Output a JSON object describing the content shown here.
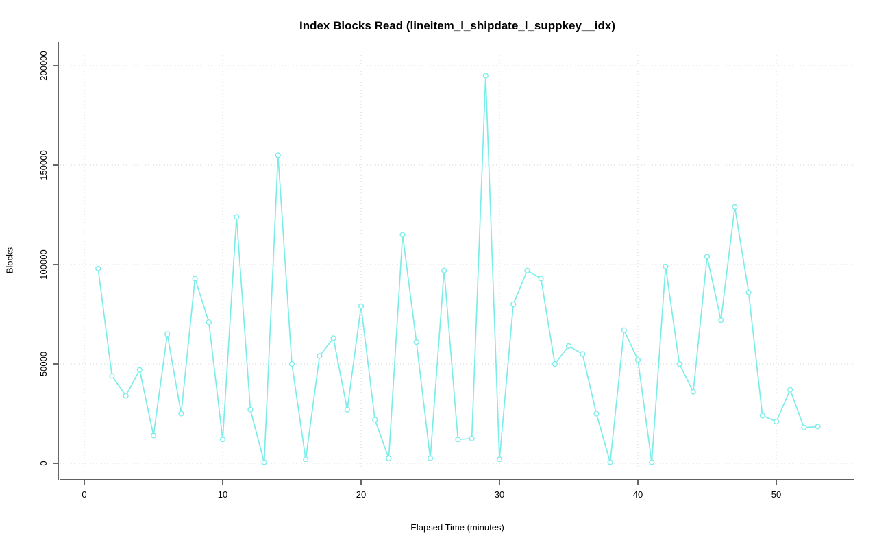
{
  "chart_data": {
    "type": "line",
    "title": "Index Blocks Read (lineitem_l_shipdate_l_suppkey__idx)",
    "xlabel": "Elapsed Time (minutes)",
    "ylabel": "Blocks",
    "x": [
      1,
      2,
      3,
      4,
      5,
      6,
      7,
      8,
      9,
      10,
      11,
      12,
      13,
      14,
      15,
      16,
      17,
      18,
      19,
      20,
      21,
      22,
      23,
      24,
      25,
      26,
      27,
      28,
      29,
      30,
      31,
      32,
      33,
      34,
      35,
      36,
      37,
      38,
      39,
      40,
      41,
      42,
      43,
      44,
      45,
      46,
      47,
      48,
      49,
      50,
      51,
      52,
      53
    ],
    "values": [
      98000,
      44000,
      34000,
      47000,
      14000,
      65000,
      25000,
      93000,
      71000,
      12000,
      124000,
      27000,
      500,
      155000,
      50000,
      2000,
      54000,
      63000,
      27000,
      79000,
      22000,
      2500,
      115000,
      61000,
      2500,
      97000,
      12000,
      12500,
      195000,
      2000,
      80000,
      97000,
      93000,
      50000,
      59000,
      55000,
      25000,
      500,
      67000,
      52000,
      500,
      99000,
      50000,
      36000,
      104000,
      72000,
      129000,
      86000,
      24000,
      21000,
      37000,
      18000,
      18500
    ],
    "xticks": [
      0,
      10,
      20,
      30,
      40,
      50
    ],
    "yticks": [
      0,
      50000,
      100000,
      150000,
      200000
    ],
    "xlim": [
      0,
      55
    ],
    "ylim": [
      0,
      205000
    ],
    "grid": "dotted",
    "legend": "none",
    "marker": "open-circle",
    "line_color": "#7BEDE9",
    "grid_color": "#D4D4D4",
    "axis_color": "#000000",
    "background_color": "#FFFFFF"
  }
}
